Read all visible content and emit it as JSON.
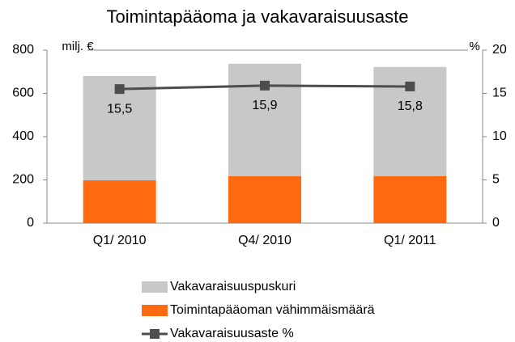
{
  "chart_data": {
    "type": "bar",
    "title": "Toimintapääoma ja vakavaraisuusaste",
    "y_label": "milj. €",
    "y2_label": "%",
    "categories": [
      "Q1/ 2010",
      "Q4/ 2010",
      "Q1/ 2011"
    ],
    "stacked": true,
    "series": [
      {
        "name": "Toimintapääoman vähimmäismäärä",
        "type": "bar",
        "color": "#ff6a10",
        "values": [
          198,
          218,
          218
        ]
      },
      {
        "name": "Vakavaraisuuspuskuri",
        "type": "bar",
        "color": "#c8c8c8",
        "values": [
          482,
          519,
          504
        ]
      },
      {
        "name": "Vakavaraisuusaste %",
        "type": "line",
        "axis": "y2",
        "color": "#4d4d4d",
        "values": [
          15.5,
          15.9,
          15.8
        ],
        "value_labels": [
          "15,5",
          "15,9",
          "15,8"
        ]
      }
    ],
    "ylim": [
      0,
      800
    ],
    "yticks": [
      0,
      200,
      400,
      600,
      800
    ],
    "y2lim": [
      0,
      20
    ],
    "y2ticks": [
      0,
      5,
      10,
      15,
      20
    ]
  }
}
